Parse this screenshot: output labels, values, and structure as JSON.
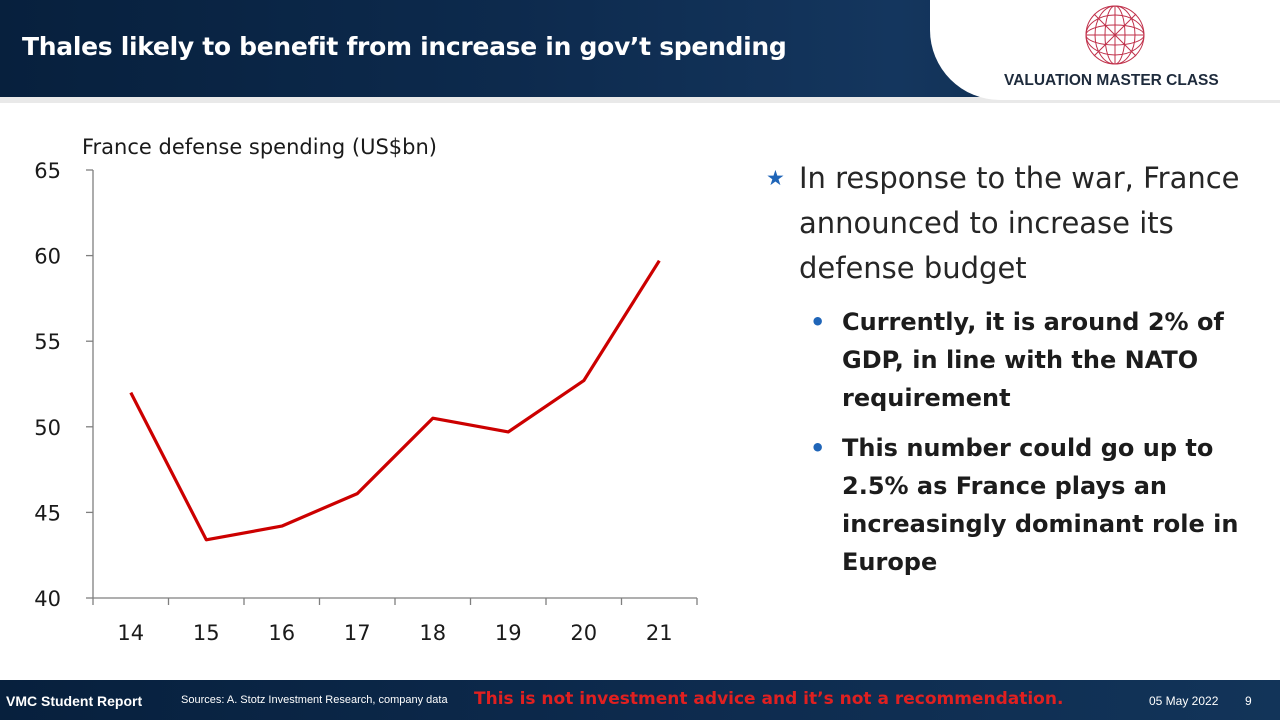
{
  "header": {
    "title": "Thales likely to benefit from increase in gov’t spending",
    "logo_text": "VALUATION MASTER CLASS",
    "logo_icon": "globe-icon"
  },
  "colors": {
    "header_bg": "#0d2a4d",
    "line": "#cc0000",
    "bullet": "#1f65b8",
    "disclaimer": "#e02020"
  },
  "chart_data": {
    "type": "line",
    "title": "France defense spending (US$bn)",
    "categories": [
      "14",
      "15",
      "16",
      "17",
      "18",
      "19",
      "20",
      "21"
    ],
    "series": [
      {
        "values": [
          52.0,
          43.4,
          44.2,
          46.1,
          50.5,
          49.7,
          52.7,
          59.7
        ]
      }
    ],
    "ylim": [
      40,
      65
    ],
    "yticks": [
      40,
      45,
      50,
      55,
      60,
      65
    ],
    "grid": false,
    "legend": "none"
  },
  "bullets": {
    "main": "In response to the war, France announced to increase its defense budget",
    "subs": [
      "Currently, it is around 2% of GDP, in line with the NATO requirement",
      "This number could go up to 2.5% as France plays an increasingly dominant role in Europe"
    ]
  },
  "footer": {
    "report_label": "VMC Student Report",
    "sources": "Sources: A. Stotz Investment Research, company data",
    "disclaimer": "This is not investment advice and it’s not a recommendation.",
    "date": "05 May 2022",
    "page": "9"
  }
}
